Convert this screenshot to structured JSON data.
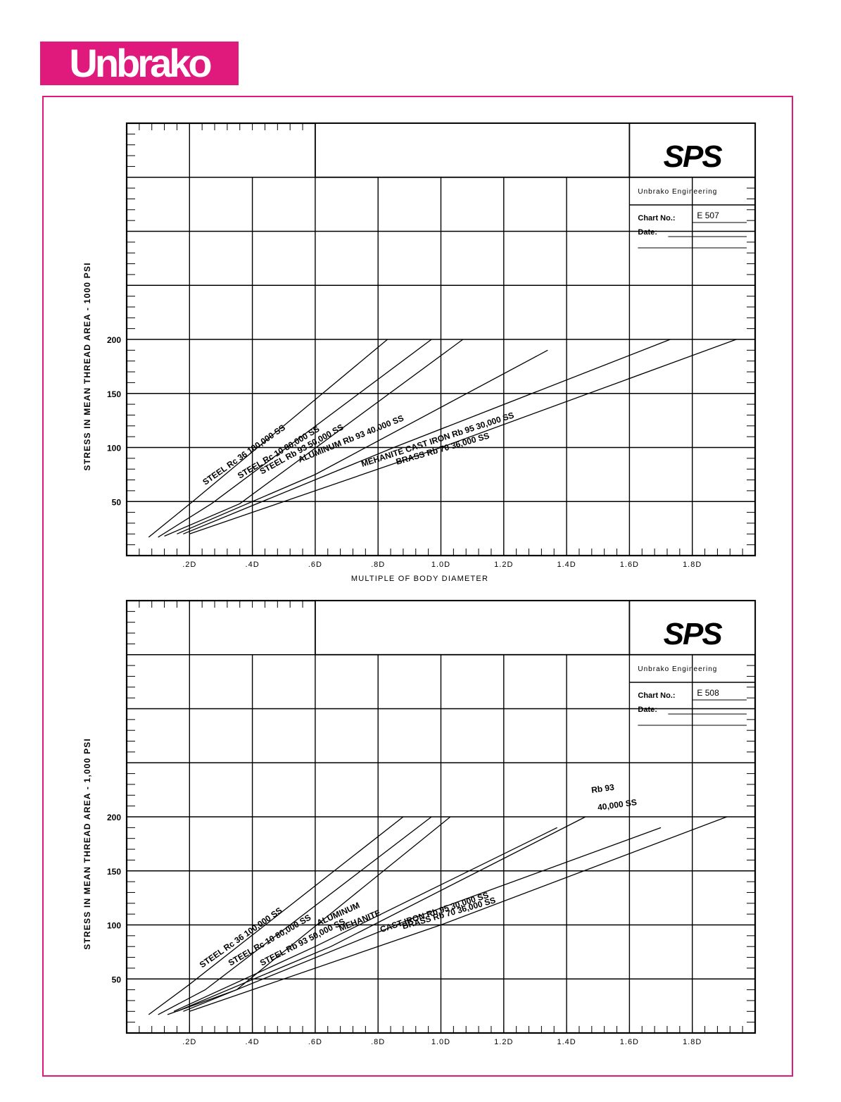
{
  "brand": {
    "logo_text": "Unbrako",
    "color": "#e0197d"
  },
  "charts": [
    {
      "title_block": {
        "logo": "SPS",
        "company": "Unbrako Engineering",
        "chart_no_label": "Chart No.:",
        "chart_no": "E 507",
        "date_label": "Date:"
      },
      "ylabel": "STRESS IN MEAN THREAD AREA - 1000 PSI",
      "xlabel": "MULTIPLE OF BODY DIAMETER",
      "ytick_labels": [
        "50",
        "100",
        "150",
        "200"
      ],
      "xtick_labels": [
        ".2D",
        ".4D",
        ".6D",
        ".8D",
        "1.0D",
        "1.2D",
        "1.4D",
        "1.6D",
        "1.8D"
      ],
      "series_labels": [
        "STEEL Rc 36 100,000 SS",
        "STEEL Rc 10 80,000 SS",
        "STEEL Rb 93 50,000 SS",
        "ALUMINUM Rb 93 40,000 SS",
        "MEHANITE CAST IRON Rb 95 30,000 SS",
        "BRASS Rb 70 36,000 SS"
      ]
    },
    {
      "title_block": {
        "logo": "SPS",
        "company": "Unbrako Engineering",
        "chart_no_label": "Chart No.:",
        "chart_no": "E 508",
        "date_label": "Date:"
      },
      "ylabel": "STRESS IN MEAN THREAD AREA - 1,000 PSI",
      "xlabel": "",
      "ytick_labels": [
        "50",
        "100",
        "150",
        "200"
      ],
      "xtick_labels": [
        ".2D",
        ".4D",
        ".6D",
        ".8D",
        "1.0D",
        "1.2D",
        "1.4D",
        "1.6D",
        "1.8D"
      ],
      "series_labels": [
        "STEEL Rc 36 100,000 SS",
        "STEEL Rc 10 80,000 SS",
        "STEEL Rb 93 50,000 SS",
        "ALUMINUM",
        "MEHANITE",
        "CAST IRON Rb 95 30,000 SS",
        "BRASS Rb 70 36,000 SS",
        "Rb 93",
        "40,000 SS"
      ]
    }
  ],
  "chart_data": [
    {
      "type": "line",
      "title": "",
      "xlabel": "MULTIPLE OF BODY DIAMETER",
      "ylabel": "STRESS IN MEAN THREAD AREA - 1000 PSI",
      "xlim": [
        0,
        2.0
      ],
      "ylim": [
        0,
        400
      ],
      "grid": true,
      "series": [
        {
          "name": "STEEL Rc 36 100,000 SS",
          "x": [
            0.07,
            0.21,
            0.83
          ],
          "y": [
            17,
            50,
            200
          ]
        },
        {
          "name": "STEEL Rc 10 80,000 SS",
          "x": [
            0.1,
            0.27,
            0.97
          ],
          "y": [
            17,
            48,
            200
          ]
        },
        {
          "name": "STEEL Rb 93 50,000 SS",
          "x": [
            0.12,
            0.36,
            1.07
          ],
          "y": [
            18,
            48,
            200
          ]
        },
        {
          "name": "ALUMINUM Rb 93 40,000 SS",
          "x": [
            0.16,
            0.6,
            1.34
          ],
          "y": [
            20,
            75,
            190
          ]
        },
        {
          "name": "MEHANITE CAST IRON Rb 95 30,000 SS",
          "x": [
            0.18,
            0.85,
            1.73
          ],
          "y": [
            20,
            100,
            200
          ]
        },
        {
          "name": "BRASS Rb 70 36,000 SS",
          "x": [
            0.2,
            1.0,
            1.94
          ],
          "y": [
            20,
            100,
            200
          ]
        }
      ]
    },
    {
      "type": "line",
      "title": "",
      "xlabel": "",
      "ylabel": "STRESS IN MEAN THREAD AREA - 1,000 PSI",
      "xlim": [
        0,
        2.0
      ],
      "ylim": [
        0,
        400
      ],
      "grid": true,
      "series": [
        {
          "name": "STEEL Rc 36 100,000 SS",
          "x": [
            0.07,
            0.2,
            0.88
          ],
          "y": [
            17,
            45,
            200
          ]
        },
        {
          "name": "STEEL Rc 10 80,000 SS",
          "x": [
            0.1,
            0.25,
            0.97
          ],
          "y": [
            17,
            40,
            200
          ]
        },
        {
          "name": "STEEL Rb 93 50,000 SS",
          "x": [
            0.13,
            0.35,
            1.03
          ],
          "y": [
            17,
            40,
            200
          ]
        },
        {
          "name": "ALUMINUM",
          "x": [
            0.15,
            0.6,
            1.37
          ],
          "y": [
            20,
            80,
            190
          ]
        },
        {
          "name": "MEHANITE",
          "x": [
            0.16,
            0.65,
            1.46
          ],
          "y": [
            20,
            80,
            200
          ]
        },
        {
          "name": "CAST IRON Rb 95 30,000 SS",
          "x": [
            0.18,
            0.9,
            1.7
          ],
          "y": [
            20,
            105,
            190
          ]
        },
        {
          "name": "BRASS Rb 70 36,000 SS",
          "x": [
            0.2,
            1.0,
            1.91
          ],
          "y": [
            20,
            100,
            200
          ]
        }
      ]
    }
  ]
}
